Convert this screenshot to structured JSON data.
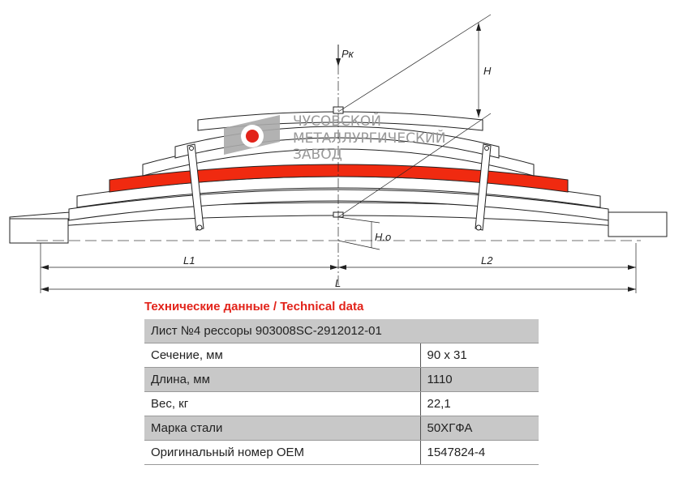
{
  "drawing": {
    "labels": {
      "load": "Pк",
      "height": "H",
      "height_zero": "H.o",
      "left_length": "L1",
      "right_length": "L2",
      "total_length": "L"
    },
    "logo": {
      "lines": [
        "ЧУСОВСКОЙ",
        "МЕТАЛЛУРГИЧЕСКИЙ",
        "ЗАВОД"
      ]
    },
    "highlight_color": "#f02a10"
  },
  "table": {
    "title": "Технические данные / Technical data",
    "header": "Лист №4 рессоры 903008SC-2912012-01",
    "rows": [
      {
        "label": "Сечение, мм",
        "value": "90 х 31"
      },
      {
        "label": "Длина, мм",
        "value": "1110"
      },
      {
        "label": "Вес, кг",
        "value": "22,1"
      },
      {
        "label": "Марка стали",
        "value": "50ХГФА"
      },
      {
        "label": "Оригинальный номер OEM",
        "value": "1547824-4"
      }
    ]
  }
}
